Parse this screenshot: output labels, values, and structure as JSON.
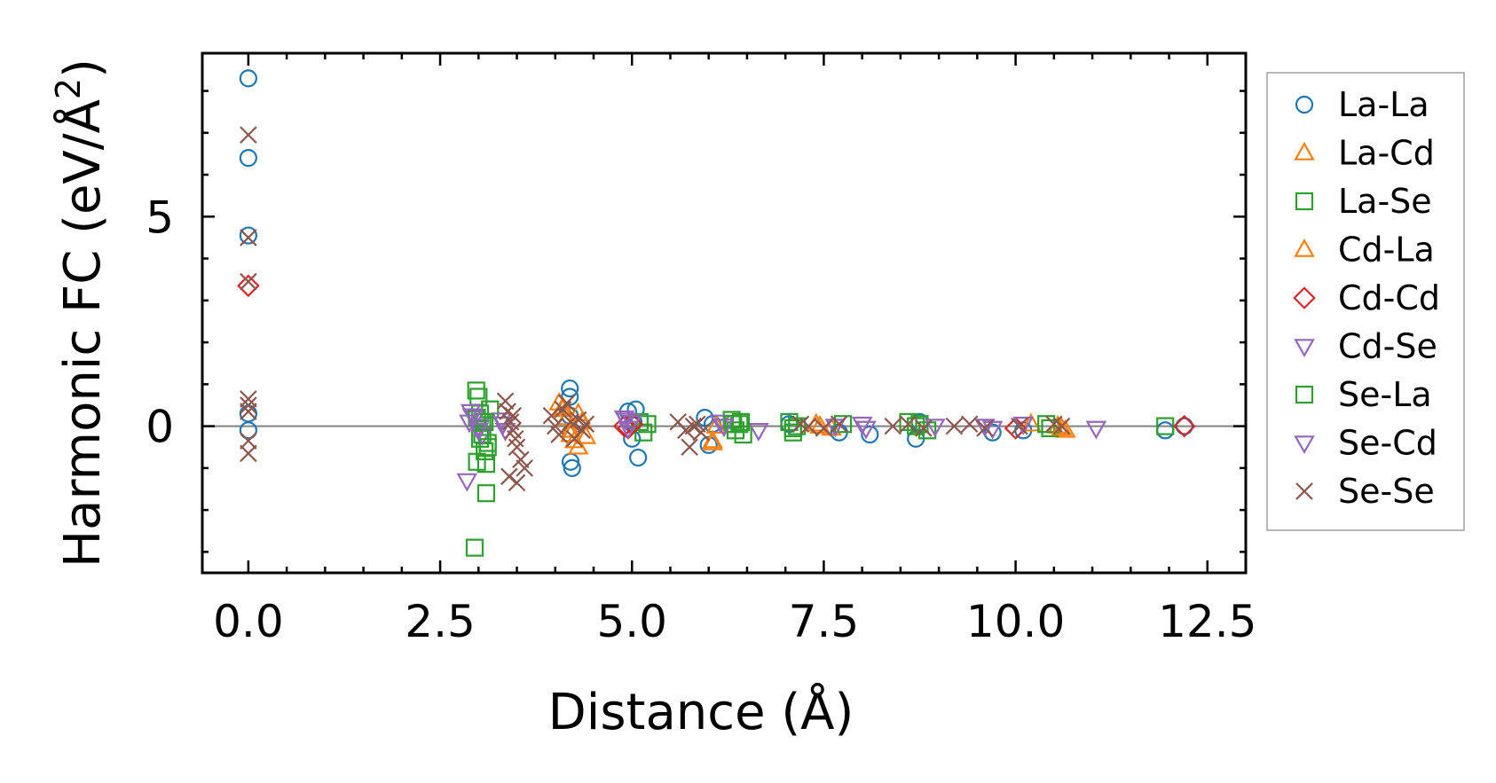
{
  "chart_data": {
    "type": "scatter",
    "title": "",
    "xlabel": "Distance (Å)",
    "ylabel": "Harmonic FC (eV/Å²)",
    "ylabel_main": "Harmonic FC (eV/Å",
    "ylabel_sup": "2",
    "ylabel_tail": ")",
    "xlim": [
      -0.6,
      13.0
    ],
    "ylim": [
      -3.5,
      8.9
    ],
    "xticks": [
      0.0,
      2.5,
      5.0,
      7.5,
      10.0,
      12.5
    ],
    "xtick_labels": [
      "0.0",
      "2.5",
      "5.0",
      "7.5",
      "10.0",
      "12.5"
    ],
    "yticks": [
      0,
      5
    ],
    "ytick_labels": [
      "0",
      "5"
    ],
    "zero_line": true,
    "legend_position": "right-outside",
    "series": [
      {
        "name": "La-La",
        "marker": "circle",
        "color": "#1f77b4",
        "x": [
          0,
          0,
          0,
          0,
          0,
          4.19,
          4.19,
          4.19,
          4.22,
          4.2,
          4.95,
          5.0,
          5.05,
          5.08,
          5.02,
          5.95,
          6.0,
          6.05,
          7.05,
          7.7,
          8.1,
          8.7,
          8.75,
          9.7,
          10.1,
          11.95,
          12.2
        ],
        "y": [
          8.3,
          6.4,
          4.55,
          0.3,
          -0.1,
          0.9,
          0.7,
          0.25,
          -1.0,
          -0.85,
          0.35,
          -0.3,
          0.4,
          -0.75,
          0.1,
          0.2,
          -0.45,
          0.05,
          0.05,
          -0.15,
          -0.2,
          -0.3,
          0.1,
          -0.15,
          -0.1,
          -0.1,
          0.0
        ]
      },
      {
        "name": "La-Cd",
        "marker": "triangle-up",
        "color": "#ff7f0e",
        "x": [
          4.05,
          4.1,
          4.15,
          4.2,
          4.25,
          4.3,
          4.35,
          4.4,
          6.05,
          6.1,
          7.4,
          7.6,
          10.2,
          10.55,
          10.65
        ],
        "y": [
          0.55,
          0.4,
          0.2,
          -0.1,
          -0.35,
          -0.5,
          0.1,
          -0.25,
          -0.4,
          0.0,
          0.05,
          -0.05,
          0.05,
          0.0,
          -0.1
        ]
      },
      {
        "name": "La-Se",
        "marker": "square",
        "color": "#2ca02c",
        "x": [
          2.95,
          2.97,
          3.0,
          3.02,
          3.05,
          3.08,
          3.1,
          3.12,
          3.15,
          3.1,
          2.98,
          3.05,
          5.1,
          5.15,
          5.2,
          6.3,
          6.35,
          6.4,
          6.45,
          7.05,
          7.1,
          7.15,
          7.75,
          8.6,
          8.75,
          8.85,
          10.4,
          10.45,
          11.95
        ],
        "y": [
          -2.9,
          0.85,
          0.7,
          0.3,
          -0.2,
          -0.6,
          -0.9,
          -0.4,
          0.4,
          -1.6,
          -0.85,
          0.1,
          0.1,
          -0.15,
          0.05,
          0.15,
          -0.1,
          0.05,
          -0.2,
          0.1,
          -0.15,
          0.0,
          0.05,
          0.1,
          0.05,
          -0.1,
          0.05,
          -0.05,
          0.0
        ]
      },
      {
        "name": "Cd-La",
        "marker": "triangle-up",
        "color": "#ff7f0e",
        "x": [
          4.1,
          4.2,
          4.3,
          6.05,
          7.45,
          10.6
        ],
        "y": [
          0.45,
          -0.2,
          0.3,
          -0.35,
          0.0,
          -0.05
        ]
      },
      {
        "name": "Cd-Cd",
        "marker": "diamond",
        "color": "#d62728",
        "x": [
          0,
          4.9,
          4.95,
          5.0,
          10.0,
          12.2
        ],
        "y": [
          3.35,
          0.0,
          -0.05,
          0.05,
          -0.05,
          0.0
        ]
      },
      {
        "name": "Cd-Se",
        "marker": "triangle-down",
        "color": "#9467bd",
        "x": [
          2.85,
          2.9,
          2.95,
          3.0,
          3.05,
          3.3,
          3.35,
          4.9,
          4.95,
          5.0,
          6.15,
          6.65,
          7.65,
          8.05,
          8.95,
          9.7,
          10.1,
          11.05
        ],
        "y": [
          -1.3,
          0.35,
          0.2,
          0.0,
          -0.2,
          0.15,
          -0.1,
          0.2,
          -0.05,
          0.1,
          0.1,
          -0.1,
          0.0,
          -0.05,
          0.0,
          -0.05,
          0.05,
          -0.05
        ]
      },
      {
        "name": "Se-La",
        "marker": "square",
        "color": "#2ca02c",
        "x": [
          2.98,
          3.02,
          3.08,
          3.12,
          6.32,
          6.42,
          7.1,
          8.7
        ],
        "y": [
          0.2,
          -0.3,
          0.1,
          -0.5,
          0.05,
          0.1,
          -0.05,
          0.0
        ]
      },
      {
        "name": "Se-Cd",
        "marker": "triangle-down",
        "color": "#9467bd",
        "x": [
          2.88,
          2.92,
          3.0,
          3.32,
          4.92,
          6.2,
          8.0,
          9.6
        ],
        "y": [
          0.1,
          0.25,
          -0.1,
          0.05,
          0.15,
          0.0,
          0.05,
          0.0
        ]
      },
      {
        "name": "Se-Se",
        "marker": "x",
        "color": "#8c564b",
        "x": [
          0,
          0,
          0,
          0,
          0,
          0,
          0,
          0,
          3.35,
          3.38,
          3.42,
          3.45,
          3.48,
          3.5,
          3.55,
          3.6,
          3.4,
          3.5,
          3.45,
          3.95,
          4.0,
          4.05,
          4.1,
          4.15,
          4.2,
          4.25,
          4.3,
          4.35,
          4.4,
          5.6,
          5.7,
          5.8,
          5.9,
          5.75,
          5.85,
          7.2,
          7.3,
          7.5,
          7.7,
          8.4,
          8.6,
          8.8,
          9.2,
          9.4,
          9.6,
          10.05,
          10.5,
          10.6
        ],
        "y": [
          6.95,
          4.5,
          3.45,
          0.65,
          0.5,
          0.35,
          -0.35,
          -0.65,
          0.6,
          0.35,
          0.1,
          -0.1,
          -0.3,
          -0.5,
          -0.8,
          -1.0,
          -1.2,
          -1.35,
          0.25,
          0.25,
          0.0,
          -0.2,
          0.4,
          0.55,
          0.1,
          -0.3,
          0.15,
          -0.1,
          0.05,
          0.1,
          -0.1,
          0.0,
          -0.15,
          -0.5,
          0.05,
          0.05,
          0.0,
          -0.05,
          0.05,
          0.0,
          0.05,
          -0.05,
          0.0,
          0.05,
          -0.05,
          0.0,
          0.05,
          0.0
        ]
      }
    ]
  }
}
